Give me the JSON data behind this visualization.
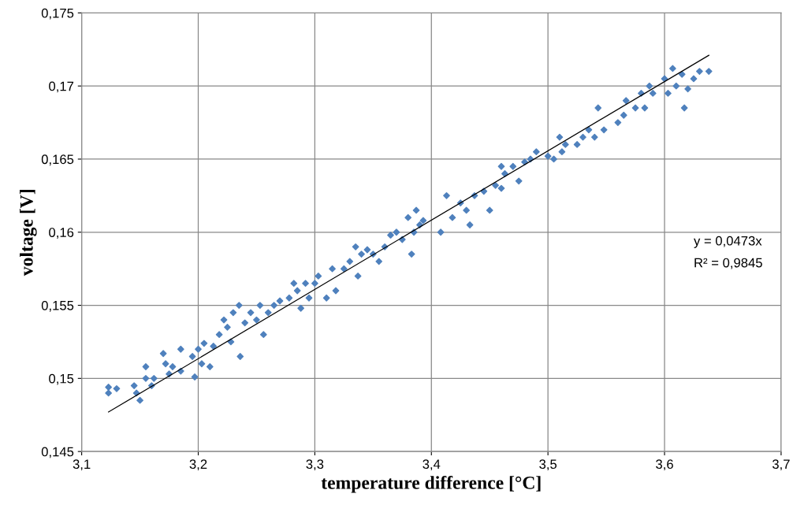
{
  "chart_data": {
    "type": "scatter",
    "xlabel": "temperature difference [°C]",
    "ylabel": "voltage [V]",
    "xlim": [
      3.1,
      3.7
    ],
    "ylim": [
      0.145,
      0.175
    ],
    "xticks": [
      {
        "value": 3.1,
        "label": "3,1"
      },
      {
        "value": 3.2,
        "label": "3,2"
      },
      {
        "value": 3.3,
        "label": "3,3"
      },
      {
        "value": 3.4,
        "label": "3,4"
      },
      {
        "value": 3.5,
        "label": "3,5"
      },
      {
        "value": 3.6,
        "label": "3,6"
      },
      {
        "value": 3.7,
        "label": "3,7"
      }
    ],
    "yticks": [
      {
        "value": 0.145,
        "label": "0,145"
      },
      {
        "value": 0.15,
        "label": "0,15"
      },
      {
        "value": 0.155,
        "label": "0,155"
      },
      {
        "value": 0.16,
        "label": "0,16"
      },
      {
        "value": 0.165,
        "label": "0,165"
      },
      {
        "value": 0.17,
        "label": "0,17"
      },
      {
        "value": 0.175,
        "label": "0,175"
      }
    ],
    "grid": true,
    "annotations": [
      "y = 0,0473x",
      "R² = 0,9845"
    ],
    "series": [
      {
        "marker": "diamond",
        "color": "#4f81bd",
        "x": [
          3.123,
          3.123,
          3.13,
          3.145,
          3.147,
          3.15,
          3.155,
          3.155,
          3.16,
          3.162,
          3.17,
          3.172,
          3.175,
          3.178,
          3.185,
          3.185,
          3.195,
          3.197,
          3.2,
          3.203,
          3.205,
          3.21,
          3.213,
          3.218,
          3.222,
          3.225,
          3.228,
          3.23,
          3.235,
          3.236,
          3.24,
          3.245,
          3.25,
          3.253,
          3.256,
          3.26,
          3.265,
          3.27,
          3.278,
          3.282,
          3.285,
          3.288,
          3.292,
          3.295,
          3.3,
          3.303,
          3.31,
          3.315,
          3.318,
          3.325,
          3.33,
          3.335,
          3.337,
          3.34,
          3.345,
          3.35,
          3.355,
          3.36,
          3.365,
          3.37,
          3.375,
          3.38,
          3.383,
          3.385,
          3.387,
          3.39,
          3.393,
          3.408,
          3.413,
          3.418,
          3.425,
          3.43,
          3.433,
          3.437,
          3.445,
          3.45,
          3.455,
          3.46,
          3.46,
          3.463,
          3.47,
          3.475,
          3.48,
          3.485,
          3.49,
          3.5,
          3.505,
          3.51,
          3.512,
          3.515,
          3.525,
          3.53,
          3.535,
          3.54,
          3.543,
          3.548,
          3.56,
          3.565,
          3.567,
          3.575,
          3.58,
          3.583,
          3.587,
          3.59,
          3.6,
          3.603,
          3.607,
          3.61,
          3.615,
          3.617,
          3.62,
          3.625,
          3.63,
          3.638
        ],
        "values": [
          0.149,
          0.1494,
          0.1493,
          0.1495,
          0.149,
          0.1485,
          0.15,
          0.1508,
          0.1495,
          0.15,
          0.1517,
          0.151,
          0.1503,
          0.1508,
          0.152,
          0.1505,
          0.1515,
          0.1501,
          0.152,
          0.151,
          0.1524,
          0.1508,
          0.1522,
          0.153,
          0.154,
          0.1535,
          0.1525,
          0.1545,
          0.155,
          0.1515,
          0.1538,
          0.1545,
          0.154,
          0.155,
          0.153,
          0.1545,
          0.155,
          0.1553,
          0.1555,
          0.1565,
          0.156,
          0.1548,
          0.1565,
          0.1555,
          0.1565,
          0.157,
          0.1555,
          0.1575,
          0.156,
          0.1575,
          0.158,
          0.159,
          0.157,
          0.1585,
          0.1588,
          0.1585,
          0.158,
          0.159,
          0.1598,
          0.16,
          0.1595,
          0.161,
          0.1585,
          0.16,
          0.1615,
          0.1605,
          0.1608,
          0.16,
          0.1625,
          0.161,
          0.162,
          0.1615,
          0.1605,
          0.1625,
          0.1628,
          0.1615,
          0.1632,
          0.1645,
          0.163,
          0.164,
          0.1645,
          0.1635,
          0.1648,
          0.165,
          0.1655,
          0.1652,
          0.165,
          0.1665,
          0.1655,
          0.166,
          0.166,
          0.1665,
          0.167,
          0.1665,
          0.1685,
          0.167,
          0.1675,
          0.168,
          0.169,
          0.1685,
          0.1695,
          0.1685,
          0.17,
          0.1695,
          0.1705,
          0.1695,
          0.1712,
          0.17,
          0.1708,
          0.1685,
          0.1698,
          0.1705,
          0.171,
          0.171
        ]
      },
      {
        "type": "line",
        "marker": "none",
        "color": "#000000",
        "x": [
          3.123,
          3.638
        ],
        "values": [
          0.1477,
          0.1721
        ]
      }
    ]
  }
}
